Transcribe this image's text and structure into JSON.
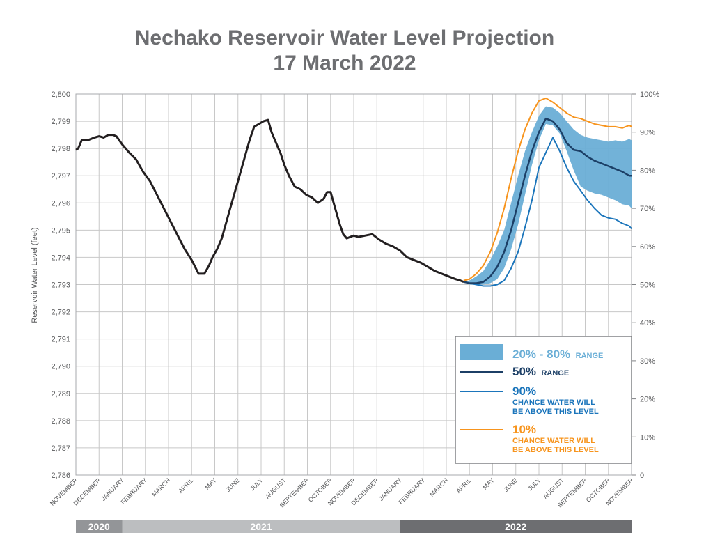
{
  "title_line1": "Nechako Reservoir Water Level Projection",
  "title_line2": "17 March 2022",
  "chart_data": {
    "type": "line",
    "title": "Nechako Reservoir Water Level Projection 17 March 2022",
    "ylabel": "Reservoir Water Level (feet)",
    "ylim": [
      2786,
      2800
    ],
    "y_ticks": [
      "2,786",
      "2,787",
      "2,788",
      "2,789",
      "2,790",
      "2,791",
      "2,792",
      "2,793",
      "2,794",
      "2,795",
      "2,796",
      "2,797",
      "2,798",
      "2,799",
      "2,800"
    ],
    "y2_ticks": [
      "0",
      "10%",
      "20%",
      "30%",
      "40%",
      "50%",
      "60%",
      "70%",
      "80%",
      "90%",
      "100%"
    ],
    "x_ticks": [
      "NOVEMBER",
      "DECEMBER",
      "JANUARY",
      "FEBRUARY",
      "MARCH",
      "APRIL",
      "MAY",
      "JUNE",
      "JULY",
      "AUGUST",
      "SEPTEMBER",
      "OCTOBER",
      "NOVEMBER",
      "DECEMBER",
      "JANUARY",
      "FEBRUARY",
      "MARCH",
      "APRIL",
      "MAY",
      "JUNE",
      "JULY",
      "AUGUST",
      "SEPTEMBER",
      "OCTOBER",
      "NOVEMBER"
    ],
    "year_bands": [
      {
        "label": "2020",
        "start": 0,
        "end": 2,
        "color": "#939598"
      },
      {
        "label": "2021",
        "start": 2,
        "end": 14,
        "color": "#bcbec0"
      },
      {
        "label": "2022",
        "start": 14,
        "end": 24,
        "color": "#6d6e71"
      }
    ],
    "grid": true,
    "legend_position": "bottom-right",
    "series": [
      {
        "key": "historical",
        "color": "#231f20",
        "x": [
          0,
          0.1,
          0.25,
          0.5,
          0.8,
          1.0,
          1.2,
          1.4,
          1.6,
          1.75,
          2.0,
          2.3,
          2.6,
          2.9,
          3.2,
          3.5,
          3.8,
          4.1,
          4.4,
          4.7,
          5.0,
          5.3,
          5.55,
          5.75,
          5.9,
          6.1,
          6.3,
          6.6,
          6.9,
          7.1,
          7.3,
          7.5,
          7.7,
          7.9,
          8.1,
          8.3,
          8.45,
          8.6,
          8.75,
          8.85,
          9.0,
          9.2,
          9.45,
          9.7,
          9.95,
          10.2,
          10.45,
          10.7,
          10.85,
          11.0,
          11.2,
          11.4,
          11.55,
          11.7,
          11.85,
          12.0,
          12.2,
          12.5,
          12.8,
          13.1,
          13.4,
          13.7,
          14.0,
          14.3,
          14.6,
          14.9,
          15.2,
          15.5,
          15.8,
          16.1,
          16.4,
          16.6,
          16.75
        ],
        "y": [
          2797.95,
          2798.0,
          2798.3,
          2798.3,
          2798.4,
          2798.45,
          2798.4,
          2798.5,
          2798.5,
          2798.45,
          2798.15,
          2797.85,
          2797.6,
          2797.15,
          2796.8,
          2796.3,
          2795.8,
          2795.3,
          2794.8,
          2794.3,
          2793.9,
          2793.4,
          2793.4,
          2793.7,
          2794.0,
          2794.3,
          2794.7,
          2795.6,
          2796.5,
          2797.1,
          2797.7,
          2798.3,
          2798.8,
          2798.9,
          2799.0,
          2799.05,
          2798.6,
          2798.3,
          2798.0,
          2797.8,
          2797.4,
          2797.0,
          2796.6,
          2796.5,
          2796.3,
          2796.2,
          2796.0,
          2796.15,
          2796.4,
          2796.4,
          2795.8,
          2795.2,
          2794.85,
          2794.7,
          2794.75,
          2794.8,
          2794.75,
          2794.8,
          2794.85,
          2794.65,
          2794.5,
          2794.4,
          2794.25,
          2794.0,
          2793.9,
          2793.8,
          2793.65,
          2793.5,
          2793.4,
          2793.3,
          2793.2,
          2793.15,
          2793.1
        ]
      },
      {
        "key": "band_upper",
        "x": [
          16.75,
          17.0,
          17.3,
          17.6,
          17.9,
          18.2,
          18.5,
          18.8,
          19.1,
          19.4,
          19.7,
          20.0,
          20.3,
          20.6,
          20.9,
          21.2,
          21.5,
          21.8,
          22.1,
          22.4,
          22.7,
          23.0,
          23.3,
          23.6,
          23.9,
          24.0
        ],
        "y": [
          2793.1,
          2793.15,
          2793.3,
          2793.5,
          2793.9,
          2794.4,
          2795.0,
          2796.0,
          2797.0,
          2797.9,
          2798.6,
          2799.2,
          2799.55,
          2799.5,
          2799.3,
          2799.0,
          2798.7,
          2798.5,
          2798.4,
          2798.35,
          2798.3,
          2798.25,
          2798.3,
          2798.25,
          2798.35,
          2798.3
        ]
      },
      {
        "key": "band_lower",
        "x": [
          16.75,
          17.0,
          17.3,
          17.6,
          17.9,
          18.2,
          18.5,
          18.8,
          19.1,
          19.4,
          19.7,
          20.0,
          20.3,
          20.6,
          20.9,
          21.2,
          21.5,
          21.8,
          22.1,
          22.4,
          22.7,
          23.0,
          23.3,
          23.6,
          23.9,
          24.0
        ],
        "y": [
          2793.1,
          2793.0,
          2793.0,
          2793.0,
          2793.05,
          2793.2,
          2793.6,
          2794.3,
          2795.2,
          2796.3,
          2797.4,
          2798.3,
          2798.9,
          2798.85,
          2798.55,
          2797.9,
          2797.2,
          2796.6,
          2796.45,
          2796.35,
          2796.3,
          2796.2,
          2796.1,
          2795.95,
          2795.9,
          2795.8
        ]
      },
      {
        "key": "p50",
        "name": "50%",
        "color": "#1c3f66",
        "x": [
          16.75,
          17.0,
          17.3,
          17.6,
          17.9,
          18.2,
          18.5,
          18.8,
          19.1,
          19.4,
          19.7,
          20.0,
          20.3,
          20.6,
          20.9,
          21.2,
          21.5,
          21.8,
          22.1,
          22.4,
          22.7,
          23.0,
          23.3,
          23.6,
          23.9,
          24.0
        ],
        "y": [
          2793.1,
          2793.05,
          2793.05,
          2793.1,
          2793.3,
          2793.65,
          2794.2,
          2795.0,
          2796.0,
          2797.0,
          2797.9,
          2798.6,
          2799.1,
          2799.0,
          2798.7,
          2798.2,
          2797.95,
          2797.9,
          2797.7,
          2797.55,
          2797.45,
          2797.35,
          2797.25,
          2797.15,
          2797.0,
          2797.0
        ]
      },
      {
        "key": "p90",
        "name": "90%",
        "color": "#1b75bb",
        "x": [
          16.75,
          17.0,
          17.3,
          17.6,
          17.9,
          18.2,
          18.5,
          18.8,
          19.1,
          19.4,
          19.7,
          20.0,
          20.3,
          20.6,
          20.9,
          21.2,
          21.5,
          21.8,
          22.1,
          22.4,
          22.7,
          23.0,
          23.3,
          23.6,
          23.9,
          24.0
        ],
        "y": [
          2793.1,
          2793.05,
          2793.0,
          2792.95,
          2792.95,
          2793.0,
          2793.15,
          2793.6,
          2794.2,
          2795.1,
          2796.1,
          2797.3,
          2797.85,
          2798.4,
          2797.9,
          2797.3,
          2796.8,
          2796.45,
          2796.1,
          2795.8,
          2795.55,
          2795.45,
          2795.4,
          2795.25,
          2795.15,
          2795.05
        ]
      },
      {
        "key": "p10",
        "name": "10%",
        "color": "#f7941d",
        "x": [
          16.75,
          17.0,
          17.3,
          17.6,
          17.9,
          18.2,
          18.5,
          18.8,
          19.1,
          19.4,
          19.7,
          20.0,
          20.3,
          20.6,
          20.9,
          21.2,
          21.5,
          21.8,
          22.1,
          22.4,
          22.7,
          23.0,
          23.3,
          23.6,
          23.9,
          24.0
        ],
        "y": [
          2793.15,
          2793.2,
          2793.4,
          2793.7,
          2794.2,
          2794.9,
          2795.8,
          2796.9,
          2797.9,
          2798.7,
          2799.3,
          2799.75,
          2799.85,
          2799.7,
          2799.5,
          2799.3,
          2799.15,
          2799.1,
          2799.0,
          2798.9,
          2798.85,
          2798.8,
          2798.8,
          2798.75,
          2798.85,
          2798.8
        ]
      }
    ]
  },
  "legend": {
    "range_big": "20% - 80%",
    "range_small": "RANGE",
    "p50_big": "50%",
    "p50_small": "RANGE",
    "p90_big": "90%",
    "p90_line1": "CHANCE WATER WILL",
    "p90_line2": "BE ABOVE THIS LEVEL",
    "p10_big": "10%",
    "p10_line1": "CHANCE WATER WILL",
    "p10_line2": "BE ABOVE THIS LEVEL",
    "colors": {
      "range": "#6aaed6",
      "p50": "#1c3f66",
      "p90": "#1b75bb",
      "p10": "#f7941d"
    }
  }
}
